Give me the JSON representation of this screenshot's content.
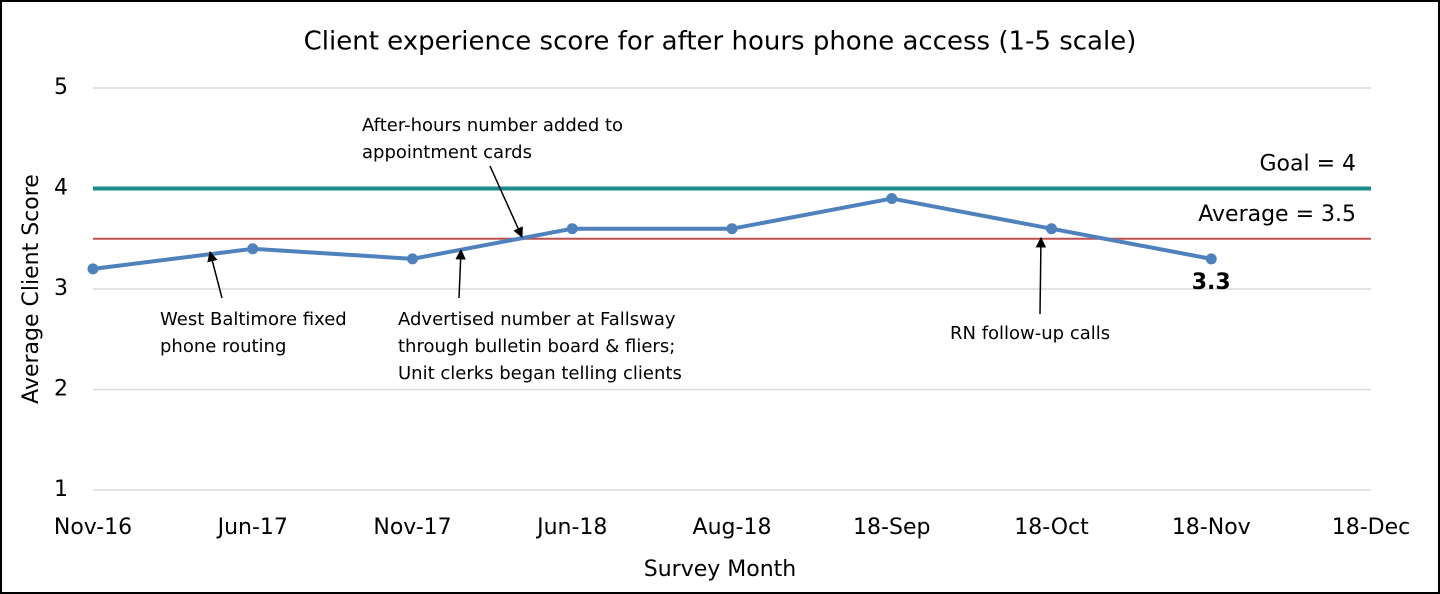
{
  "chart_data": {
    "type": "line",
    "title": "Client experience score for after hours phone access (1-5 scale)",
    "x_label": "Survey Month",
    "y_label": "Average Client Score",
    "categories": [
      "Nov-16",
      "Jun-17",
      "Nov-17",
      "Jun-18",
      "Aug-18",
      "18-Sep",
      "18-Oct",
      "18-Nov",
      "18-Dec"
    ],
    "series": [
      {
        "name": "Average Client Score",
        "color": "#4f81bd",
        "values": [
          3.2,
          3.4,
          3.3,
          3.6,
          3.6,
          3.9,
          3.6,
          3.3,
          null
        ]
      }
    ],
    "ylim": [
      1,
      5
    ],
    "yticks": [
      1,
      2,
      3,
      4,
      5
    ],
    "grid": true,
    "reference_lines": [
      {
        "label": "Goal = 4",
        "value": 4,
        "color": "#1a8a8a"
      },
      {
        "label": "Average = 3.5",
        "value": 3.5,
        "color": "#c0504d"
      }
    ],
    "annotations": [
      {
        "lines": [
          "West Baltimore fixed",
          "phone routing"
        ]
      },
      {
        "lines": [
          "Advertised number at Fallsway",
          "through bulletin board & fliers;",
          "Unit clerks began telling clients"
        ]
      },
      {
        "lines": [
          "After-hours number added to",
          "appointment cards"
        ]
      },
      {
        "lines": [
          "RN follow-up calls"
        ]
      }
    ]
  }
}
